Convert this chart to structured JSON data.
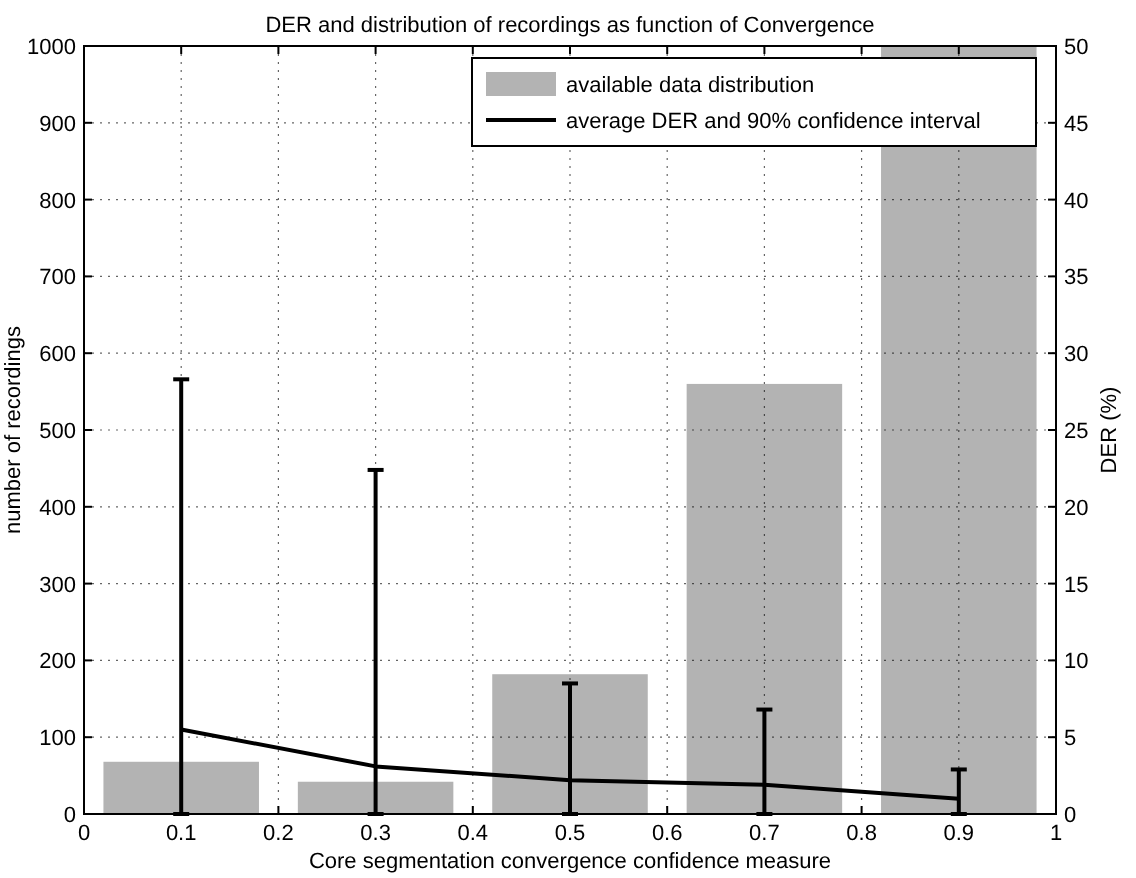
{
  "chart_data": {
    "type": "bar",
    "title": "DER and distribution of recordings as function of Convergence",
    "xlabel": "Core segmentation convergence confidence measure",
    "ylabel": "number of recordings",
    "y2label": "DER (%)",
    "x": [
      0.1,
      0.3,
      0.5,
      0.7,
      0.9
    ],
    "series": [
      {
        "name": "available data distribution",
        "color": "#b3b3b3",
        "values": [
          68,
          42,
          182,
          560,
          1000
        ]
      },
      {
        "name": "average DER and 90% confidence interval",
        "type": "line",
        "axis": "y2",
        "color": "#000000",
        "values": [
          5.5,
          3.1,
          2.2,
          1.9,
          1.0
        ],
        "errors": [
          [
            0,
            28.3
          ],
          [
            0,
            22.4
          ],
          [
            0,
            8.5
          ],
          [
            0,
            6.8
          ],
          [
            0,
            2.9
          ]
        ]
      }
    ],
    "xlim": [
      0,
      1
    ],
    "xticks": [
      0,
      0.1,
      0.2,
      0.3,
      0.4,
      0.5,
      0.6,
      0.7,
      0.8,
      0.9,
      1
    ],
    "ylim": [
      0,
      1000
    ],
    "yticks": [
      0,
      100,
      200,
      300,
      400,
      500,
      600,
      700,
      800,
      900,
      1000
    ],
    "y2lim": [
      0,
      50
    ],
    "y2ticks": [
      0,
      5,
      10,
      15,
      20,
      25,
      30,
      35,
      40,
      45,
      50
    ],
    "grid": true,
    "legend": "top right",
    "marker": "none",
    "line_style": "solid"
  }
}
